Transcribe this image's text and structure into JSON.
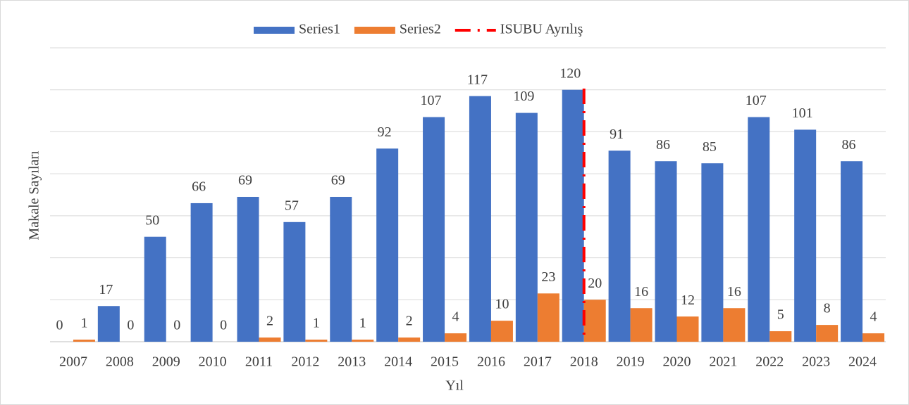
{
  "chart_data": {
    "type": "bar",
    "x_label": "Yıl",
    "y_label": "Makale Sayıları",
    "categories": [
      "2007",
      "2008",
      "2009",
      "2010",
      "2011",
      "2012",
      "2013",
      "2014",
      "2015",
      "2016",
      "2017",
      "2018",
      "2019",
      "2020",
      "2021",
      "2022",
      "2023",
      "2024"
    ],
    "series": [
      {
        "name": "Series1",
        "color": "#4472c4",
        "values": [
          0,
          17,
          50,
          66,
          69,
          57,
          69,
          92,
          107,
          117,
          109,
          120,
          91,
          86,
          85,
          107,
          101,
          86
        ]
      },
      {
        "name": "Series2",
        "color": "#ed7d31",
        "values": [
          1,
          0,
          0,
          0,
          2,
          1,
          1,
          2,
          4,
          10,
          23,
          20,
          16,
          12,
          16,
          5,
          8,
          4
        ]
      }
    ],
    "reference_line": {
      "name": "ISUBU Ayrılış",
      "category": "2018",
      "color": "#ff0000"
    },
    "ylim": [
      0,
      140
    ],
    "yticks": [
      0,
      20,
      40,
      60,
      80,
      100,
      120,
      140
    ],
    "grid": true,
    "legend": "top"
  }
}
